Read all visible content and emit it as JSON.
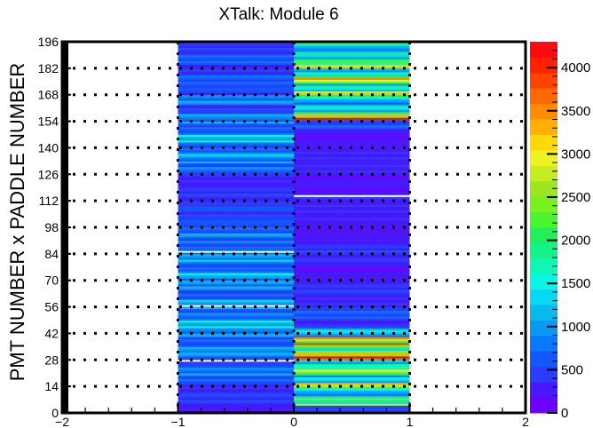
{
  "chart_data": {
    "type": "heatmap",
    "title": "XTalk: Module 6",
    "xlabel": "",
    "ylabel": "PMT NUMBER x PADDLE NUMBER",
    "xlim": [
      -2,
      2
    ],
    "ylim": [
      0,
      196
    ],
    "x_ticks": [
      "−2",
      "−1",
      "0",
      "1",
      "2"
    ],
    "y_ticks": [
      "0",
      "14",
      "28",
      "42",
      "56",
      "70",
      "84",
      "98",
      "112",
      "126",
      "140",
      "154",
      "168",
      "182",
      "196"
    ],
    "z_ticks": [
      "0",
      "500",
      "1000",
      "1500",
      "2000",
      "2500",
      "3000",
      "3500",
      "4000"
    ],
    "zlim": [
      0,
      4300
    ],
    "x_bin_edges": [
      -1,
      0,
      1
    ],
    "y_bins": 196,
    "grid": "dotted horizontal at each y tick and vertical at x = -1, 0, 1",
    "columns": [
      {
        "x_range": [
          -1,
          0
        ],
        "segments": [
          {
            "y": [
              0,
              5
            ],
            "z": 250
          },
          {
            "y": [
              5,
              10
            ],
            "z": 500
          },
          {
            "y": [
              10,
              15
            ],
            "z": 300
          },
          {
            "y": [
              15,
              20
            ],
            "z": 600
          },
          {
            "y": [
              20,
              24
            ],
            "z": 900
          },
          {
            "y": [
              24,
              28
            ],
            "z": 500
          },
          {
            "y": [
              28,
              32
            ],
            "z": 800
          },
          {
            "y": [
              32,
              36
            ],
            "z": 1000
          },
          {
            "y": [
              36,
              40
            ],
            "z": 600
          },
          {
            "y": [
              40,
              45
            ],
            "z": 900
          },
          {
            "y": [
              45,
              50
            ],
            "z": 1200
          },
          {
            "y": [
              50,
              55
            ],
            "z": 700
          },
          {
            "y": [
              55,
              60
            ],
            "z": 1000
          },
          {
            "y": [
              60,
              65
            ],
            "z": 600
          },
          {
            "y": [
              65,
              70
            ],
            "z": 900
          },
          {
            "y": [
              70,
              75
            ],
            "z": 1100
          },
          {
            "y": [
              75,
              80
            ],
            "z": 700
          },
          {
            "y": [
              80,
              86
            ],
            "z": 1000
          },
          {
            "y": [
              86,
              90
            ],
            "z": 600
          },
          {
            "y": [
              90,
              95
            ],
            "z": 800
          },
          {
            "y": [
              95,
              100
            ],
            "z": 700
          },
          {
            "y": [
              100,
              110
            ],
            "z": 500
          },
          {
            "y": [
              110,
              118
            ],
            "z": 400
          },
          {
            "y": [
              118,
              126
            ],
            "z": 300
          },
          {
            "y": [
              126,
              132
            ],
            "z": 700
          },
          {
            "y": [
              132,
              138
            ],
            "z": 1000
          },
          {
            "y": [
              138,
              143
            ],
            "z": 700
          },
          {
            "y": [
              143,
              148
            ],
            "z": 1200
          },
          {
            "y": [
              148,
              153
            ],
            "z": 600
          },
          {
            "y": [
              153,
              158
            ],
            "z": 900
          },
          {
            "y": [
              158,
              163
            ],
            "z": 500
          },
          {
            "y": [
              163,
              168
            ],
            "z": 800
          },
          {
            "y": [
              168,
              173
            ],
            "z": 500
          },
          {
            "y": [
              173,
              178
            ],
            "z": 700
          },
          {
            "y": [
              178,
              184
            ],
            "z": 400
          },
          {
            "y": [
              184,
              190
            ],
            "z": 600
          },
          {
            "y": [
              190,
              196
            ],
            "z": 400
          }
        ],
        "highlights": [
          {
            "y": 85,
            "z": 4300
          },
          {
            "y": 56.5,
            "z": 4300
          },
          {
            "y": 27.5,
            "z": 4300
          }
        ]
      },
      {
        "x_range": [
          0,
          1
        ],
        "segments": [
          {
            "y": [
              0,
              4
            ],
            "z": 500
          },
          {
            "y": [
              4,
              8
            ],
            "z": 2200
          },
          {
            "y": [
              8,
              12
            ],
            "z": 1000
          },
          {
            "y": [
              12,
              16
            ],
            "z": 2500
          },
          {
            "y": [
              16,
              20
            ],
            "z": 1300
          },
          {
            "y": [
              20,
              24
            ],
            "z": 2200
          },
          {
            "y": [
              24,
              28
            ],
            "z": 1500
          },
          {
            "y": [
              28,
              32
            ],
            "z": 3300
          },
          {
            "y": [
              32,
              36
            ],
            "z": 2100
          },
          {
            "y": [
              36,
              40
            ],
            "z": 2800
          },
          {
            "y": [
              40,
              45
            ],
            "z": 1200
          },
          {
            "y": [
              45,
              50
            ],
            "z": 400
          },
          {
            "y": [
              50,
              56
            ],
            "z": 600
          },
          {
            "y": [
              56,
              60
            ],
            "z": 300
          },
          {
            "y": [
              60,
              70
            ],
            "z": 400
          },
          {
            "y": [
              70,
              80
            ],
            "z": 250
          },
          {
            "y": [
              80,
              90
            ],
            "z": 400
          },
          {
            "y": [
              90,
              100
            ],
            "z": 250
          },
          {
            "y": [
              100,
              114
            ],
            "z": 300
          },
          {
            "y": [
              114,
              126
            ],
            "z": 250
          },
          {
            "y": [
              126,
              140
            ],
            "z": 300
          },
          {
            "y": [
              140,
              150
            ],
            "z": 250
          },
          {
            "y": [
              150,
              155
            ],
            "z": 600
          },
          {
            "y": [
              155,
              158
            ],
            "z": 3300
          },
          {
            "y": [
              158,
              162
            ],
            "z": 1500
          },
          {
            "y": [
              162,
              166
            ],
            "z": 900
          },
          {
            "y": [
              166,
              170
            ],
            "z": 2300
          },
          {
            "y": [
              170,
              174
            ],
            "z": 1500
          },
          {
            "y": [
              174,
              178
            ],
            "z": 2600
          },
          {
            "y": [
              178,
              182
            ],
            "z": 1400
          },
          {
            "y": [
              182,
              186
            ],
            "z": 2300
          },
          {
            "y": [
              186,
              190
            ],
            "z": 1600
          },
          {
            "y": [
              190,
              194
            ],
            "z": 1000
          },
          {
            "y": [
              194,
              196
            ],
            "z": 2600
          }
        ],
        "highlights": [
          {
            "y": 114.5,
            "z": 4300
          }
        ]
      }
    ]
  }
}
